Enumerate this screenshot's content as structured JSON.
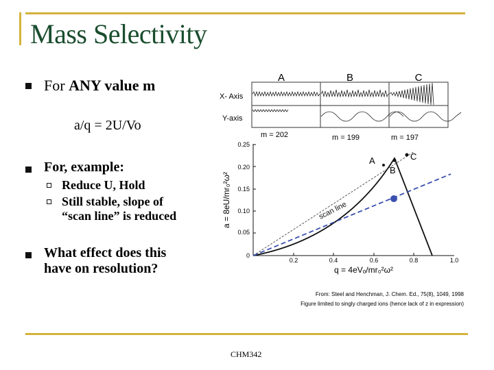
{
  "slide": {
    "title": "Mass Selectivity",
    "bullets": {
      "b1_pre": "For ",
      "b1_bold": "ANY value m",
      "equation": "a/q = 2U/Vo",
      "b2": "For, example:",
      "sub1": "Reduce U, Hold",
      "sub2a": "Still stable, slope of",
      "sub2b": "“scan line” is reduced",
      "b3a": "What effect does this",
      "b3b": "have on resolution?"
    },
    "footer": "CHM342"
  },
  "figure": {
    "panel_labels": [
      "A",
      "B",
      "C"
    ],
    "row_labels": [
      "X- Axis",
      "Y-axis"
    ],
    "mass_labels": [
      "m = 202",
      "m = 199",
      "m = 197"
    ],
    "y_ticks": [
      "0.25",
      "0.20",
      "0.15",
      "0.10",
      "0.05",
      "0"
    ],
    "x_ticks": [
      "0.2",
      "0.4",
      "0.6",
      "0.8",
      "1.0"
    ],
    "y_axis_label": "a = 8eU/mr₀²ω²",
    "x_axis_label": "q = 4eVₒ/mr₀²ω²",
    "scan_line_label": "scan line",
    "point_labels": [
      "A",
      "B",
      "C"
    ],
    "citation_1": "From: Steel and Henchman, J. Chem. Ed., 75(8), 1049, 1998",
    "citation_2": "Figure limited to singly charged ions (hence lack of z in expression)"
  }
}
